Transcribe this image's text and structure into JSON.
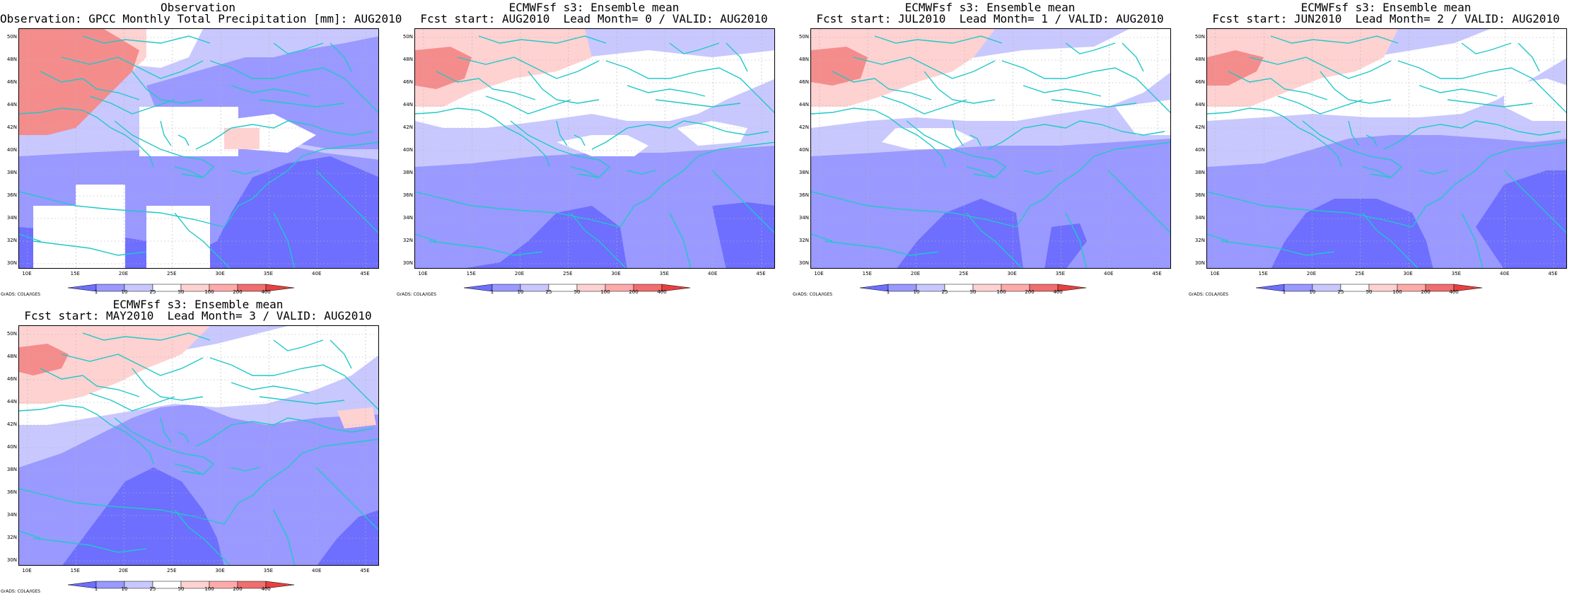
{
  "panels": [
    {
      "title_line1": "Observation",
      "title_line2": "Observation: GPCC Monthly Total Precipitation [mm]: AUG2010",
      "variant": "obs"
    },
    {
      "title_line1": "ECMWFsf s3: Ensemble mean",
      "title_line2": "Fcst start: AUG2010  Lead Month= 0 / VALID: AUG2010",
      "variant": "fc0"
    },
    {
      "title_line1": "ECMWFsf s3: Ensemble mean",
      "title_line2": "Fcst start: JUL2010  Lead Month= 1 / VALID: AUG2010",
      "variant": "fc1"
    },
    {
      "title_line1": "ECMWFsf s3: Ensemble mean",
      "title_line2": "Fcst start: JUN2010  Lead Month= 2 / VALID: AUG2010",
      "variant": "fc2"
    },
    {
      "title_line1": "ECMWFsf s3: Ensemble mean",
      "title_line2": "Fcst start: MAY2010  Lead Month= 3 / VALID: AUG2010",
      "variant": "fc3"
    }
  ],
  "lat_labels": [
    "50N",
    "48N",
    "46N",
    "44N",
    "42N",
    "40N",
    "38N",
    "36N",
    "34N",
    "32N",
    "30N"
  ],
  "lon_labels": [
    "10E",
    "15E",
    "20E",
    "25E",
    "30E",
    "35E",
    "40E",
    "45E"
  ],
  "colorbar_labels": [
    "1",
    "10",
    "25",
    "50",
    "100",
    "200",
    "400"
  ],
  "colorbar_colors": [
    "#6e6eff",
    "#9999ff",
    "#c8c8ff",
    "#ffffff",
    "#ffd2d2",
    "#ffaaaa",
    "#f06e6e",
    "#e84040"
  ],
  "credit": "GrADS: COLA/IGES",
  "colors": {
    "coast": "#20c8c8",
    "level_dark_blue": "#6e6eff",
    "level_mid_blue": "#9999ff",
    "level_light_blue": "#d2d2ff",
    "level_light_red": "#ffd2d2",
    "level_mid_red": "#f58c8c"
  }
}
